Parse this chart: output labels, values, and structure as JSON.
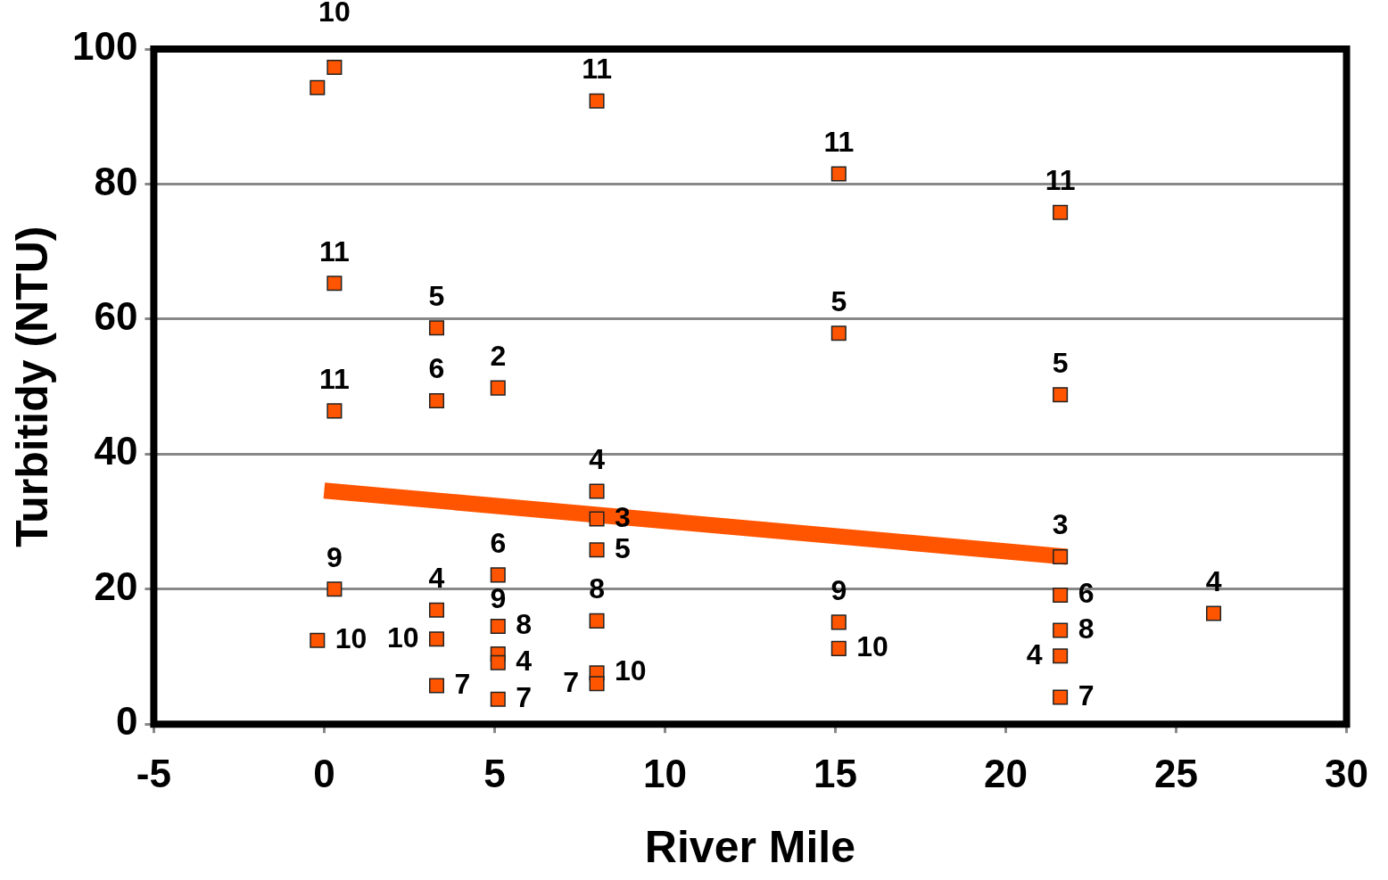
{
  "chart_data": {
    "type": "scatter",
    "xlabel": "River Mile",
    "ylabel": "Turbitidy (NTU)",
    "xlim": [
      -5,
      30
    ],
    "xticks": [
      -5,
      0,
      5,
      10,
      15,
      20,
      25,
      30
    ],
    "ylim": [
      0,
      100
    ],
    "yticks": [
      0,
      20,
      40,
      60,
      80,
      100
    ],
    "grid": "y",
    "legend": false,
    "marker": "square",
    "series": [
      {
        "color": "#ff5500",
        "x": [
          -0.2,
          0.3,
          -0.2,
          0.3,
          0.3,
          0.3,
          3.3,
          3.3,
          3.3,
          3.3,
          3.3,
          5.1,
          5.1,
          5.1,
          5.1,
          5.1,
          5.1,
          8.0,
          8.0,
          8.0,
          8.0,
          8.0,
          8.0,
          8.0,
          15.1,
          15.1,
          15.1,
          15.1,
          21.6,
          21.6,
          21.6,
          21.6,
          21.6,
          21.6,
          21.6,
          26.1
        ],
        "values": [
          94.3,
          97.3,
          12.4,
          20.0,
          65.3,
          46.4,
          58.7,
          47.9,
          16.9,
          12.6,
          5.7,
          49.8,
          22.1,
          14.5,
          10.4,
          9.1,
          3.7,
          92.3,
          34.5,
          30.4,
          25.8,
          15.3,
          7.6,
          6.0,
          81.5,
          57.9,
          15.1,
          11.2,
          75.8,
          48.8,
          24.8,
          19.1,
          13.9,
          10.1,
          4.0,
          16.4
        ]
      },
      {
        "type": "line",
        "marker": "none",
        "color": "#ff5500",
        "x": [
          0,
          21.8
        ],
        "values": [
          34.6,
          24.8
        ]
      }
    ],
    "annotations": [
      {
        "text": "10",
        "x": 0.3,
        "y": 97.3
      },
      {
        "text": "10",
        "x": -0.2,
        "y": 12.4
      },
      {
        "text": "9",
        "x": 0.3,
        "y": 20.0
      },
      {
        "text": "11",
        "x": 0.3,
        "y": 65.3
      },
      {
        "text": "11",
        "x": 0.3,
        "y": 46.4
      },
      {
        "text": "5",
        "x": 3.3,
        "y": 58.7
      },
      {
        "text": "6",
        "x": 3.3,
        "y": 47.9
      },
      {
        "text": "4",
        "x": 3.3,
        "y": 16.9
      },
      {
        "text": "10",
        "x": 3.3,
        "y": 12.6
      },
      {
        "text": "7",
        "x": 3.3,
        "y": 5.7
      },
      {
        "text": "2",
        "x": 5.1,
        "y": 49.8
      },
      {
        "text": "6",
        "x": 5.1,
        "y": 22.1
      },
      {
        "text": "8",
        "x": 5.1,
        "y": 14.5
      },
      {
        "text": "9",
        "x": 5.1,
        "y": 10.4
      },
      {
        "text": "4",
        "x": 5.1,
        "y": 9.1
      },
      {
        "text": "7",
        "x": 5.1,
        "y": 3.7
      },
      {
        "text": "11",
        "x": 8.0,
        "y": 92.3
      },
      {
        "text": "4",
        "x": 8.0,
        "y": 34.5
      },
      {
        "text": "3",
        "x": 8.0,
        "y": 30.4
      },
      {
        "text": "5",
        "x": 8.0,
        "y": 25.8
      },
      {
        "text": "8",
        "x": 8.0,
        "y": 15.3
      },
      {
        "text": "10",
        "x": 8.0,
        "y": 7.6
      },
      {
        "text": "7",
        "x": 8.0,
        "y": 6.0
      },
      {
        "text": "11",
        "x": 15.1,
        "y": 81.5
      },
      {
        "text": "5",
        "x": 15.1,
        "y": 57.9
      },
      {
        "text": "9",
        "x": 15.1,
        "y": 15.1
      },
      {
        "text": "10",
        "x": 15.1,
        "y": 11.2
      },
      {
        "text": "11",
        "x": 21.6,
        "y": 75.8
      },
      {
        "text": "5",
        "x": 21.6,
        "y": 48.8
      },
      {
        "text": "3",
        "x": 21.6,
        "y": 24.8
      },
      {
        "text": "6",
        "x": 21.6,
        "y": 19.1
      },
      {
        "text": "8",
        "x": 21.6,
        "y": 13.9
      },
      {
        "text": "4",
        "x": 21.6,
        "y": 10.1
      },
      {
        "text": "7",
        "x": 21.6,
        "y": 4.0
      },
      {
        "text": "4",
        "x": 26.1,
        "y": 16.4
      }
    ]
  }
}
